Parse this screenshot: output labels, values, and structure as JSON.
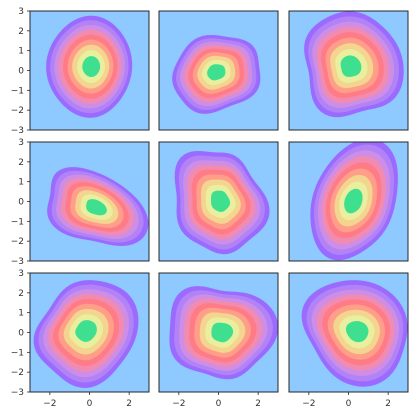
{
  "chart_data": {
    "type": "contour",
    "layout": {
      "rows": 3,
      "cols": 3,
      "sharex": true,
      "sharey": true
    },
    "xlim": [
      -3,
      3
    ],
    "ylim": [
      -3,
      3
    ],
    "xticks": [
      -2,
      0,
      2
    ],
    "yticks": [
      -3,
      -2,
      -1,
      0,
      1,
      2,
      3
    ],
    "xtick_labels": [
      "−2",
      "0",
      "2"
    ],
    "ytick_labels": [
      "−3",
      "−2",
      "−1",
      "0",
      "1",
      "2",
      "3"
    ],
    "title": "",
    "xlabel": "",
    "ylabel": "",
    "background_color": "#8ec9ff",
    "level_colors": [
      "#9b6bff",
      "#b283f7",
      "#cf8ee6",
      "#f28bb0",
      "#ff7b86",
      "#ff9f8a",
      "#f3d58f",
      "#e9ef9f",
      "#3ee08f"
    ],
    "panels": [
      {
        "center": [
          0.0,
          0.2
        ],
        "spread": [
          0.9,
          1.05
        ],
        "rotation": 0,
        "wobble": 0.18
      },
      {
        "center": [
          -0.1,
          -0.15
        ],
        "spread": [
          0.95,
          0.8
        ],
        "rotation": 20,
        "wobble": 0.22
      },
      {
        "center": [
          0.2,
          0.3
        ],
        "spread": [
          1.05,
          1.1
        ],
        "rotation": 35,
        "wobble": 0.2
      },
      {
        "center": [
          0.3,
          -0.35
        ],
        "spread": [
          1.1,
          0.75
        ],
        "rotation": -25,
        "wobble": 0.2
      },
      {
        "center": [
          0.0,
          0.0
        ],
        "spread": [
          0.95,
          1.1
        ],
        "rotation": 10,
        "wobble": 0.24
      },
      {
        "center": [
          0.3,
          0.1
        ],
        "spread": [
          0.9,
          1.25
        ],
        "rotation": -20,
        "wobble": 0.18
      },
      {
        "center": [
          -0.1,
          0.0
        ],
        "spread": [
          1.1,
          1.05
        ],
        "rotation": 30,
        "wobble": 0.16
      },
      {
        "center": [
          0.1,
          0.05
        ],
        "spread": [
          1.05,
          1.05
        ],
        "rotation": 15,
        "wobble": 0.2
      },
      {
        "center": [
          0.4,
          0.1
        ],
        "spread": [
          1.2,
          1.0
        ],
        "rotation": -10,
        "wobble": 0.18
      }
    ]
  }
}
